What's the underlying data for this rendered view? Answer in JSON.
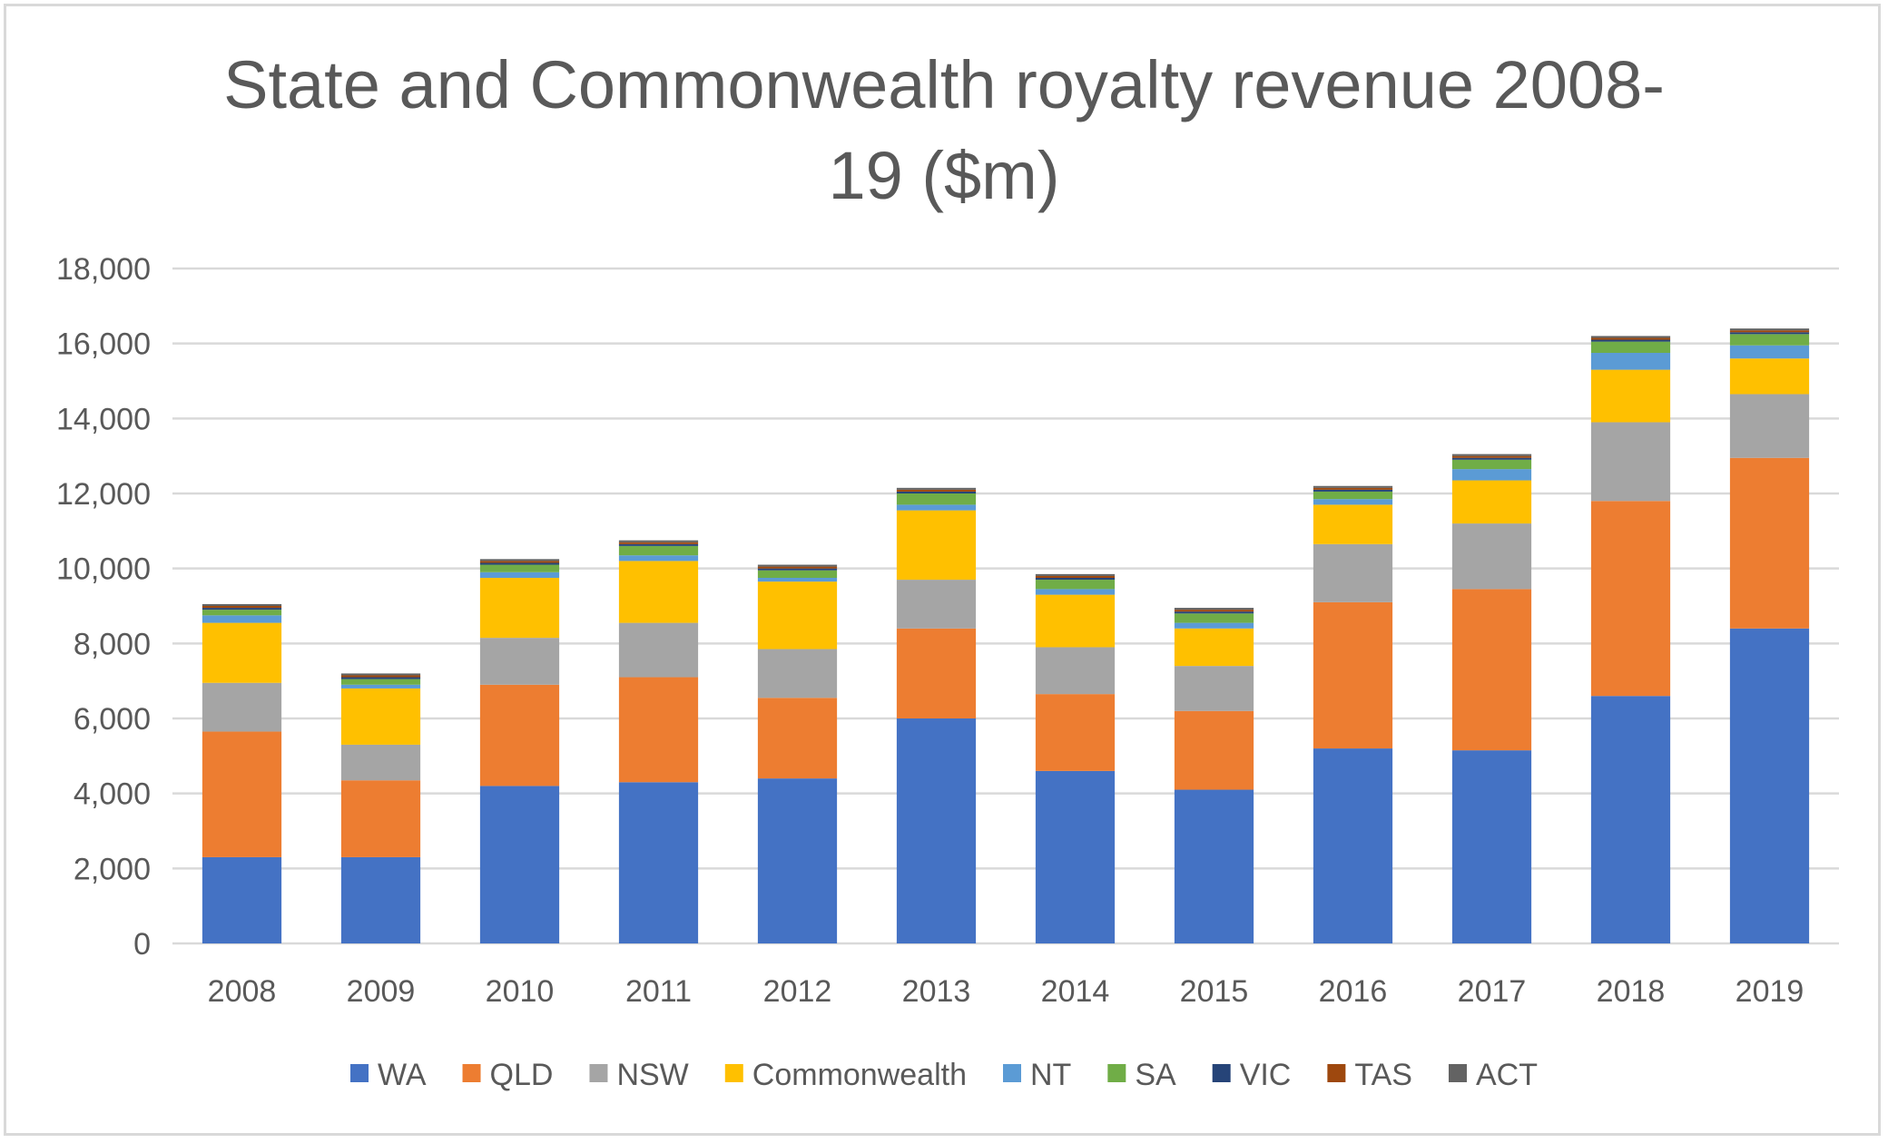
{
  "chart_data": {
    "type": "bar",
    "stacked": true,
    "title_lines": [
      "State and Commonwealth royalty revenue 2008-",
      "19 ($m)"
    ],
    "xlabel": "",
    "ylabel": "",
    "ylim": [
      0,
      18000
    ],
    "yticks": [
      0,
      2000,
      4000,
      6000,
      8000,
      10000,
      12000,
      14000,
      16000,
      18000
    ],
    "ytick_labels": [
      "0",
      "2,000",
      "4,000",
      "6,000",
      "8,000",
      "10,000",
      "12,000",
      "14,000",
      "16,000",
      "18,000"
    ],
    "grid": true,
    "legend_position": "bottom",
    "categories": [
      "2008",
      "2009",
      "2010",
      "2011",
      "2012",
      "2013",
      "2014",
      "2015",
      "2016",
      "2017",
      "2018",
      "2019"
    ],
    "series": [
      {
        "name": "WA",
        "color": "#4472c4",
        "values": [
          2300,
          2300,
          4200,
          4300,
          4400,
          6000,
          4600,
          4100,
          5200,
          5150,
          6600,
          8400
        ]
      },
      {
        "name": "QLD",
        "color": "#ed7d31",
        "values": [
          3350,
          2050,
          2700,
          2800,
          2150,
          2400,
          2050,
          2100,
          3900,
          4300,
          5200,
          4550
        ]
      },
      {
        "name": "NSW",
        "color": "#a5a5a5",
        "values": [
          1300,
          950,
          1250,
          1450,
          1300,
          1300,
          1250,
          1200,
          1550,
          1750,
          2100,
          1700
        ]
      },
      {
        "name": "Commonwealth",
        "color": "#ffc000",
        "values": [
          1600,
          1500,
          1600,
          1650,
          1800,
          1850,
          1400,
          1000,
          1050,
          1150,
          1400,
          950
        ]
      },
      {
        "name": "NT",
        "color": "#5b9bd5",
        "values": [
          200,
          100,
          150,
          150,
          100,
          150,
          150,
          150,
          150,
          300,
          450,
          350
        ]
      },
      {
        "name": "SA",
        "color": "#70ad47",
        "values": [
          150,
          150,
          200,
          250,
          200,
          300,
          250,
          250,
          200,
          250,
          300,
          300
        ]
      },
      {
        "name": "VIC",
        "color": "#264478",
        "values": [
          50,
          50,
          50,
          50,
          50,
          50,
          50,
          50,
          50,
          50,
          50,
          50
        ]
      },
      {
        "name": "TAS",
        "color": "#9e480e",
        "values": [
          50,
          50,
          50,
          50,
          50,
          50,
          50,
          50,
          50,
          50,
          50,
          50
        ]
      },
      {
        "name": "ACT",
        "color": "#636363",
        "values": [
          50,
          50,
          50,
          50,
          50,
          50,
          50,
          50,
          50,
          50,
          50,
          50
        ]
      }
    ]
  }
}
